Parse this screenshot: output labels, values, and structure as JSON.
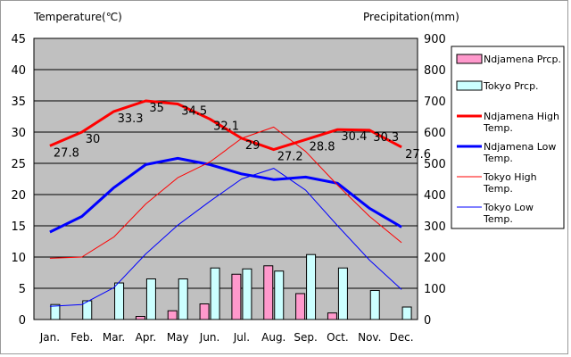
{
  "chart_data": {
    "type": "bar+line",
    "left_axis_title": "Temperature(℃)",
    "right_axis_title": "Precipitation(mm)",
    "categories": [
      "Jan.",
      "Feb.",
      "Mar.",
      "Apr.",
      "May",
      "Jun.",
      "Jul.",
      "Aug.",
      "Sep.",
      "Oct.",
      "Nov.",
      "Dec."
    ],
    "y_left": {
      "min": 0,
      "max": 45,
      "ticks": [
        "0",
        "5",
        "10",
        "15",
        "20",
        "25",
        "30",
        "35",
        "40",
        "45"
      ]
    },
    "y_right": {
      "min": 0,
      "max": 900,
      "ticks": [
        "0",
        "100",
        "200",
        "300",
        "400",
        "500",
        "600",
        "700",
        "800",
        "900"
      ]
    },
    "grid": true,
    "legend_position": "right",
    "bar_series": [
      {
        "name": "Ndjamena Prcp.",
        "color": "#ff99cc",
        "values": [
          0,
          0,
          0,
          10,
          28,
          50,
          145,
          172,
          83,
          21,
          0,
          0
        ]
      },
      {
        "name": "Tokyo Prcp.",
        "color": "#ccffff",
        "values": [
          48,
          60,
          117,
          130,
          130,
          165,
          162,
          155,
          208,
          165,
          93,
          40
        ]
      }
    ],
    "line_series": [
      {
        "name": "Ndjamena High Temp.",
        "color": "#ff0000",
        "width": "thick",
        "values": [
          27.8,
          30,
          33.3,
          35,
          34.5,
          32.1,
          29,
          27.2,
          28.8,
          30.4,
          30.3,
          27.6
        ],
        "labels": [
          "27.8",
          "30",
          "33.3",
          "35",
          "34.5",
          "32.1",
          "29",
          "27.2",
          "28.8",
          "30.4",
          "30.3",
          "27.6"
        ]
      },
      {
        "name": "Ndjamena Low Temp.",
        "color": "#0000ff",
        "width": "thick",
        "values": [
          14,
          16.5,
          21.1,
          24.8,
          25.8,
          24.8,
          23.3,
          22.4,
          22.8,
          21.8,
          17.8,
          14.8
        ]
      },
      {
        "name": "Tokyo High Temp.",
        "color": "#ff0000",
        "width": "thin",
        "values": [
          9.8,
          10,
          13.2,
          18.5,
          22.7,
          25.2,
          29,
          30.8,
          26.9,
          21.5,
          16.5,
          12.3
        ]
      },
      {
        "name": "Tokyo Low Temp.",
        "color": "#0000ff",
        "width": "thin",
        "values": [
          2.1,
          2.4,
          5.1,
          10.5,
          15.1,
          18.9,
          22.5,
          24.2,
          20.7,
          15,
          9.5,
          4.8
        ]
      }
    ]
  }
}
